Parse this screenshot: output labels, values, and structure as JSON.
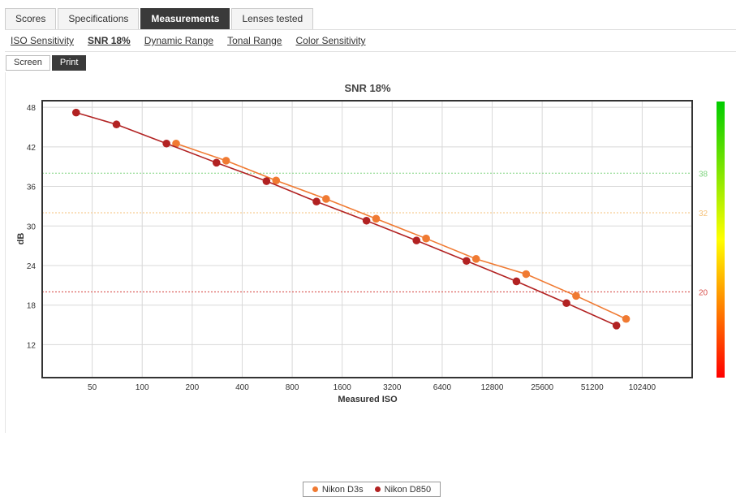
{
  "tabs": [
    {
      "label": "Scores",
      "active": false
    },
    {
      "label": "Specifications",
      "active": false
    },
    {
      "label": "Measurements",
      "active": true
    },
    {
      "label": "Lenses tested",
      "active": false
    }
  ],
  "subnav": [
    {
      "label": "ISO Sensitivity",
      "active": false
    },
    {
      "label": "SNR 18%",
      "active": true
    },
    {
      "label": "Dynamic Range",
      "active": false
    },
    {
      "label": "Tonal Range",
      "active": false
    },
    {
      "label": "Color Sensitivity",
      "active": false
    }
  ],
  "toggles": [
    {
      "label": "Screen",
      "active": false
    },
    {
      "label": "Print",
      "active": true
    }
  ],
  "colors": {
    "d3s": "#f07a32",
    "d850": "#b22222",
    "ref_38": "#7fd47f",
    "ref_32": "#f5c27a",
    "ref_20": "#d9534f"
  },
  "chart_data": {
    "type": "line",
    "title": "SNR 18%",
    "xlabel": "Measured ISO",
    "ylabel": "dB",
    "x_scale": "log2",
    "xlim": [
      25,
      204800
    ],
    "ylim": [
      7,
      49
    ],
    "x_ticks": [
      50,
      100,
      200,
      400,
      800,
      1600,
      3200,
      6400,
      12800,
      25600,
      51200,
      102400
    ],
    "y_ticks": [
      12,
      18,
      24,
      30,
      36,
      42,
      48
    ],
    "grid": true,
    "legend_position": "bottom",
    "reference_lines": [
      {
        "value": 38,
        "label": "38"
      },
      {
        "value": 32,
        "label": "32"
      },
      {
        "value": 20,
        "label": "20"
      }
    ],
    "color_scale": {
      "min": 7,
      "max": 49,
      "colors": [
        "#ff0000",
        "#ffff00",
        "#00cc00"
      ]
    },
    "series": [
      {
        "name": "Nikon D3s",
        "x": [
          160,
          320,
          640,
          1280,
          2560,
          5120,
          10240,
          20480,
          40960,
          81920
        ],
        "y": [
          42.5,
          39.9,
          36.9,
          34.1,
          31.1,
          28.1,
          25.0,
          22.7,
          19.4,
          15.9
        ]
      },
      {
        "name": "Nikon D850",
        "x": [
          40,
          70,
          140,
          280,
          560,
          1120,
          2240,
          4480,
          8960,
          17920,
          35840,
          71680
        ],
        "y": [
          47.2,
          45.4,
          42.5,
          39.6,
          36.8,
          33.7,
          30.8,
          27.8,
          24.7,
          21.6,
          18.3,
          14.9
        ]
      }
    ]
  }
}
